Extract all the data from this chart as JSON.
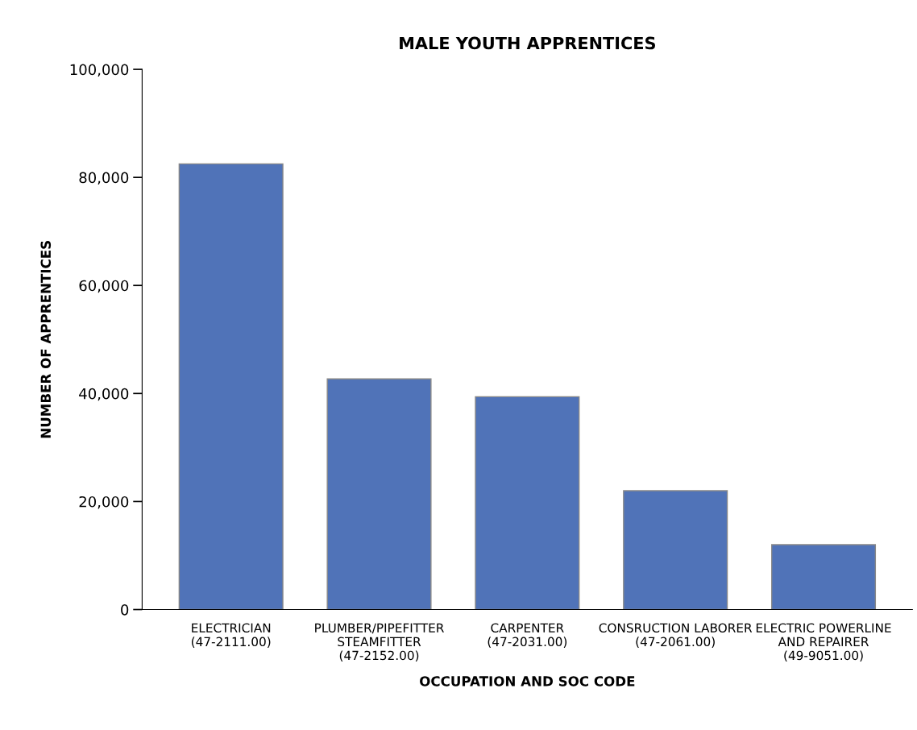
{
  "chart_data": {
    "type": "bar",
    "title": "MALE YOUTH APPRENTICES",
    "xlabel": "OCCUPATION AND SOC CODE",
    "ylabel": "NUMBER OF APPRENTICES",
    "categories": [
      "ELECTRICIAN\n(47-2111.00)",
      "PLUMBER/PIPEFITTER\nSTEAMFITTER\n(47-2152.00)",
      "CARPENTER\n(47-2031.00)",
      "CONSRUCTION LABORER\n(47-2061.00)",
      "ELECTRIC POWERLINE\nAND REPAIRER\n(49-9051.00)"
    ],
    "values": [
      82500,
      42700,
      39400,
      22000,
      12000
    ],
    "color": "#5073b8",
    "ylim": [
      0,
      100000
    ],
    "yticks": [
      {
        "value": 0,
        "label": "0"
      },
      {
        "value": 20000,
        "label": "20,000"
      },
      {
        "value": 40000,
        "label": "40,000"
      },
      {
        "value": 60000,
        "label": "60,000"
      },
      {
        "value": 80000,
        "label": "80,000"
      },
      {
        "value": 100000,
        "label": "100,000"
      }
    ],
    "grid": false,
    "legend": false
  }
}
